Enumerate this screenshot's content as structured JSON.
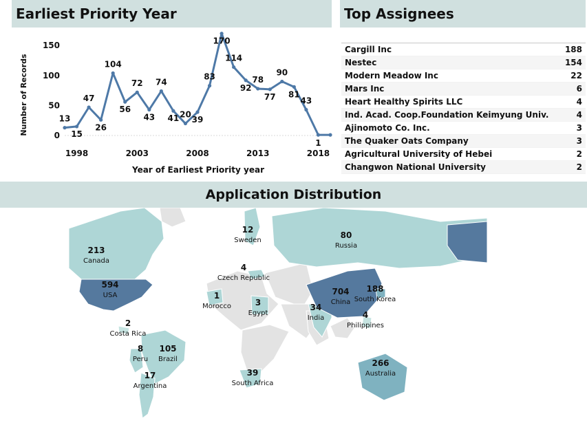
{
  "line_panel": {
    "title": "Earliest Priority Year"
  },
  "assignees_panel": {
    "title": "Top Assignees",
    "rows": [
      {
        "name": "Cargill Inc",
        "count": "188"
      },
      {
        "name": "Nestec",
        "count": "154"
      },
      {
        "name": "Modern Meadow Inc",
        "count": "22"
      },
      {
        "name": "Mars Inc",
        "count": "6"
      },
      {
        "name": "Heart Healthy Spirits LLC",
        "count": "4"
      },
      {
        "name": "Ind. Acad. Coop.Foundation Keimyung Univ.",
        "count": "4"
      },
      {
        "name": "Ajinomoto Co. Inc.",
        "count": "3"
      },
      {
        "name": "The Quaker Oats Company",
        "count": "3"
      },
      {
        "name": "Agricultural University of Hebei",
        "count": "2"
      },
      {
        "name": "Changwon National University",
        "count": "2"
      }
    ]
  },
  "map_panel": {
    "title": "Application Distribution",
    "countries": [
      {
        "name": "Canada",
        "value": "213"
      },
      {
        "name": "USA",
        "value": "594"
      },
      {
        "name": "Costa Rica",
        "value": "2"
      },
      {
        "name": "Peru",
        "value": "8"
      },
      {
        "name": "Brazil",
        "value": "105"
      },
      {
        "name": "Argentina",
        "value": "17"
      },
      {
        "name": "Sweden",
        "value": "12"
      },
      {
        "name": "Czech Republic",
        "value": "4"
      },
      {
        "name": "Morocco",
        "value": "1"
      },
      {
        "name": "Egypt",
        "value": "3"
      },
      {
        "name": "South Africa",
        "value": "39"
      },
      {
        "name": "Russia",
        "value": "80"
      },
      {
        "name": "India",
        "value": "34"
      },
      {
        "name": "China",
        "value": "704"
      },
      {
        "name": "South Korea",
        "value": "188"
      },
      {
        "name": "Philippines",
        "value": "4"
      },
      {
        "name": "Australia",
        "value": "266"
      }
    ]
  },
  "colors": {
    "line": "#4e79a7",
    "header": "#d0e0df",
    "map_dark": "#55799e",
    "map_light": "#aed6d6",
    "map_none": "#e3e3e3"
  },
  "chart_data": {
    "type": "line",
    "title": "",
    "xlabel": "Year of Earliest Priority year",
    "ylabel": "Number of Records",
    "x": [
      1997,
      1998,
      1999,
      2000,
      2001,
      2002,
      2003,
      2004,
      2005,
      2006,
      2007,
      2008,
      2009,
      2010,
      2011,
      2012,
      2013,
      2014,
      2015,
      2016,
      2017,
      2018,
      2019
    ],
    "y": [
      13,
      15,
      47,
      26,
      104,
      56,
      72,
      43,
      74,
      41,
      20,
      39,
      83,
      170,
      114,
      92,
      78,
      77,
      90,
      81,
      43,
      1,
      1
    ],
    "labels": [
      "13",
      "15",
      "47",
      "26",
      "104",
      "56",
      "72",
      "43",
      "74",
      "41",
      "20",
      "39",
      "83",
      "170",
      "114",
      "92",
      "78",
      "77",
      "90",
      "81",
      "43",
      "1",
      ""
    ],
    "xticks": [
      "1998",
      "2003",
      "2008",
      "2013",
      "2018"
    ],
    "yticks": [
      "0",
      "50",
      "100",
      "150"
    ],
    "ylim": [
      0,
      180
    ]
  }
}
